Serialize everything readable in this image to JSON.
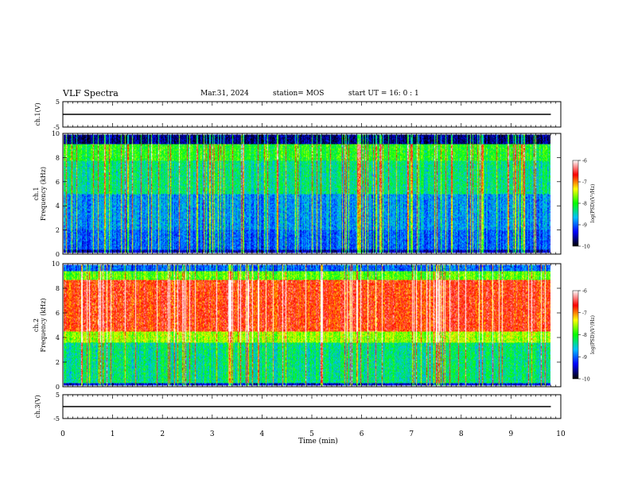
{
  "header": {
    "title": "VLF Spectra",
    "date": "Mar.31, 2024",
    "station": "station= MOS",
    "start": "start  UT =   16: 0  : 1"
  },
  "chart_data": [
    {
      "type": "line",
      "ylabel": "ch.1(V)",
      "ylim": [
        -5,
        5
      ],
      "yticks": [
        "5",
        "-5"
      ],
      "series": [
        {
          "x": [
            0,
            9.8
          ],
          "values": [
            0,
            0
          ]
        }
      ]
    },
    {
      "type": "heatmap",
      "ylabel": "ch.1  Frequency (kHz)",
      "ylim": [
        0,
        10
      ],
      "yticks": [
        "0",
        "2",
        "4",
        "6",
        "8",
        "10"
      ],
      "xlim": [
        0,
        10
      ],
      "colorbar": {
        "label": "log(PSD)(V²/Hz)",
        "range": [
          -10,
          -6
        ],
        "ticks": [
          "-6",
          "-7",
          "-8",
          "-9",
          "-10"
        ]
      }
    },
    {
      "type": "heatmap",
      "ylabel": "ch.2  Frequency (kHz)",
      "ylim": [
        0,
        10
      ],
      "yticks": [
        "0",
        "2",
        "4",
        "6",
        "8",
        "10"
      ],
      "xlim": [
        0,
        10
      ],
      "colorbar": {
        "label": "log(PSD)(V²/Hz)",
        "range": [
          -10,
          -6
        ],
        "ticks": [
          "-6",
          "-7",
          "-8",
          "-9",
          "-10"
        ]
      }
    },
    {
      "type": "line",
      "ylabel": "ch.3(V)",
      "ylim": [
        -5,
        5
      ],
      "yticks": [
        "5",
        "-5"
      ],
      "series": [
        {
          "x": [
            0,
            9.8
          ],
          "values": [
            0,
            0
          ]
        }
      ]
    }
  ],
  "xaxis": {
    "label": "Time  (min)",
    "ticks": [
      "0",
      "1",
      "2",
      "3",
      "4",
      "5",
      "6",
      "7",
      "8",
      "9",
      "10"
    ]
  },
  "colors": {
    "scale": [
      "#000000",
      "#0000ff",
      "#00bfff",
      "#00ff00",
      "#ffff00",
      "#ff0000",
      "#ffffff"
    ]
  }
}
